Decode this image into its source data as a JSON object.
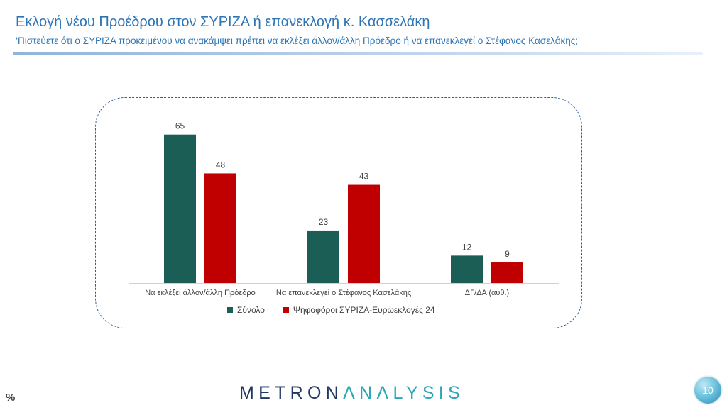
{
  "header": {
    "title": "Εκλογή νέου Προέδρου στον ΣΥΡΙΖΑ ή επανεκλογή κ. Κασσελάκη",
    "subtitle": "‘Πιστεύετε ότι ο ΣΥΡΙΖΑ προκειμένου να ανακάμψει πρέπει να εκλέξει άλλον/άλλη Πρόεδρο ή να επανεκλεγεί ο Στέφανος Κασελάκης;’"
  },
  "footer": {
    "unit": "%",
    "brand_part1": "METRON",
    "brand_part2": "ΛNΛLYSIS",
    "page_number": "10"
  },
  "colors": {
    "title": "#2e75b6",
    "series_total": "#1a5e55",
    "series_syriza": "#c00000"
  },
  "chart_data": {
    "type": "bar",
    "title": "",
    "xlabel": "",
    "ylabel": "",
    "ylim": [
      0,
      70
    ],
    "grid": false,
    "legend_position": "bottom",
    "categories": [
      "Να εκλέξει άλλον/άλλη Πρόεδρο",
      "Να επανεκλεγεί ο Στέφανος Κασελάκης",
      "ΔΓ/ΔΑ (αυθ.)"
    ],
    "series": [
      {
        "name": "Σύνολο",
        "color": "#1a5e55",
        "values": [
          65,
          23,
          12
        ]
      },
      {
        "name": "Ψηφοφόροι ΣΥΡΙΖΑ-Ευρωεκλογές 24",
        "color": "#c00000",
        "values": [
          48,
          43,
          9
        ]
      }
    ]
  }
}
